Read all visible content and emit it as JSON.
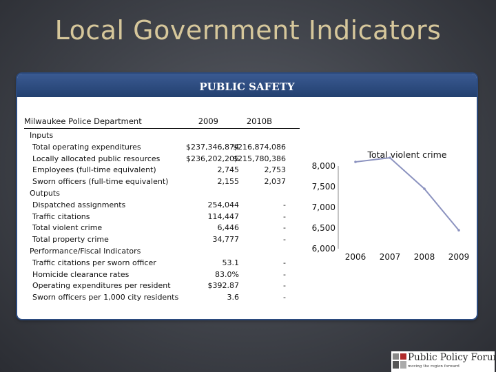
{
  "slide": {
    "title": "Local Government Indicators"
  },
  "panel": {
    "title": "PUBLIC SAFETY"
  },
  "table": {
    "header": {
      "department": "Milwaukee Police Department",
      "col1": "2009",
      "col2": "2010B"
    },
    "rows": [
      {
        "label": "Inputs",
        "v1": "",
        "v2": "",
        "section": true
      },
      {
        "label": "Total operating expenditures",
        "v1": "$237,346,874",
        "v2": "$216,874,086"
      },
      {
        "label": "Locally allocated public resources",
        "v1": "$236,202,205",
        "v2": "$215,780,386"
      },
      {
        "label": "Employees (full-time equivalent)",
        "v1": "2,745",
        "v2": "2,753"
      },
      {
        "label": "Sworn officers (full-time equivalent)",
        "v1": "2,155",
        "v2": "2,037"
      },
      {
        "label": "Outputs",
        "v1": "",
        "v2": "",
        "section": true
      },
      {
        "label": "Dispatched assignments",
        "v1": "254,044",
        "v2": "-"
      },
      {
        "label": "Traffic citations",
        "v1": "114,447",
        "v2": "-"
      },
      {
        "label": "Total violent crime",
        "v1": "6,446",
        "v2": "-"
      },
      {
        "label": "Total property crime",
        "v1": "34,777",
        "v2": "-"
      },
      {
        "label": "Performance/Fiscal Indicators",
        "v1": "",
        "v2": "",
        "section": true
      },
      {
        "label": "Traffic citations per sworn officer",
        "v1": "53.1",
        "v2": "-"
      },
      {
        "label": "Homicide clearance rates",
        "v1": "83.0%",
        "v2": "-"
      },
      {
        "label": "Operating expenditures per resident",
        "v1": "$392.87",
        "v2": "-"
      },
      {
        "label": "Sworn officers per 1,000 city residents",
        "v1": "3.6",
        "v2": "-"
      }
    ]
  },
  "chart_data": {
    "type": "line",
    "title": "Total violent crime",
    "x": [
      "2006",
      "2007",
      "2008",
      "2009"
    ],
    "series": [
      {
        "values": [
          8100,
          8200,
          7450,
          6446
        ]
      }
    ],
    "yticks": [
      "8,000",
      "7,500",
      "7,000",
      "6,500",
      "6,000"
    ],
    "ylim": [
      6000,
      8000
    ],
    "color": "#8b92bf"
  },
  "logo": {
    "text": "Public Policy Forum",
    "tagline": "moving the region forward"
  }
}
